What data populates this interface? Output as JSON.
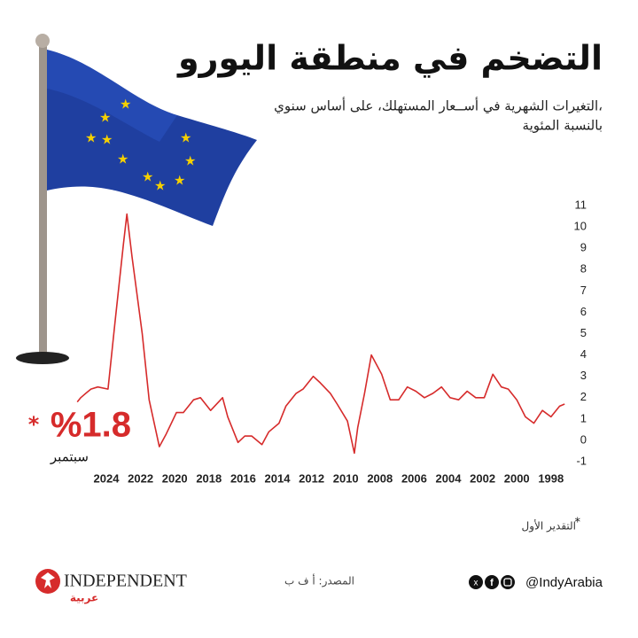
{
  "header": {
    "title": "التضخم في منطقة اليورو",
    "subtitle_lines": [
      "التغيرات الشهرية في أســعار المستهلك، على أساس سنوي،",
      "بالنسبة المئوية"
    ]
  },
  "chart_data": {
    "type": "line",
    "color": "#d62b2b",
    "x": [
      1997.2,
      1997.5,
      1998.0,
      1998.5,
      1999.0,
      1999.5,
      2000.0,
      2000.5,
      2000.9,
      2001.4,
      2001.9,
      2002.4,
      2002.9,
      2003.4,
      2003.9,
      2004.4,
      2004.9,
      2005.4,
      2005.9,
      2006.4,
      2006.9,
      2007.4,
      2007.9,
      2008.5,
      2008.9,
      2009.3,
      2009.5,
      2009.9,
      2010.5,
      2010.9,
      2011.5,
      2011.9,
      2012.5,
      2012.9,
      2013.5,
      2013.9,
      2014.5,
      2014.9,
      2015.5,
      2015.9,
      2016.3,
      2016.9,
      2017.2,
      2017.9,
      2018.5,
      2018.9,
      2019.5,
      2019.9,
      2020.5,
      2020.9,
      2021.5,
      2021.9,
      2022.5,
      2022.8,
      2023.0,
      2023.5,
      2023.9,
      2024.5,
      2024.9,
      2025.2,
      2025.5,
      2025.7
    ],
    "values": [
      1.7,
      1.6,
      1.1,
      1.4,
      0.8,
      1.1,
      1.9,
      2.4,
      2.5,
      3.1,
      2.0,
      2.0,
      2.3,
      1.9,
      2.0,
      2.5,
      2.2,
      2.0,
      2.3,
      2.5,
      1.9,
      1.9,
      3.1,
      4.0,
      2.2,
      0.6,
      -0.6,
      0.9,
      1.7,
      2.2,
      2.7,
      3.0,
      2.4,
      2.2,
      1.6,
      0.8,
      0.4,
      -0.2,
      0.2,
      0.2,
      -0.1,
      1.1,
      2.0,
      1.4,
      2.0,
      1.9,
      1.3,
      1.3,
      0.3,
      -0.3,
      1.9,
      5.0,
      8.6,
      10.6,
      9.2,
      5.5,
      2.4,
      2.5,
      2.4,
      2.2,
      2.0,
      1.8
    ],
    "xlim": [
      2026,
      1997
    ],
    "xticks": [
      2024,
      2022,
      2020,
      2018,
      2016,
      2014,
      2012,
      2010,
      2008,
      2006,
      2004,
      2002,
      2000,
      1998
    ],
    "ylim": [
      -1,
      11
    ],
    "yticks": [
      -1,
      0,
      1,
      2,
      3,
      4,
      5,
      6,
      7,
      8,
      9,
      10,
      11
    ],
    "grid": false,
    "annotations": [
      {
        "text": "%1.8"
      },
      {
        "text": "سبتمبر"
      },
      {
        "text": "*"
      }
    ]
  },
  "footnote": {
    "marker": "*",
    "text": "التقدير الأول"
  },
  "footer": {
    "brand": "INDEPENDENT",
    "brand_sub": "عربية",
    "source": "المصدر: أ ف ب",
    "handle": "@IndyArabia"
  }
}
